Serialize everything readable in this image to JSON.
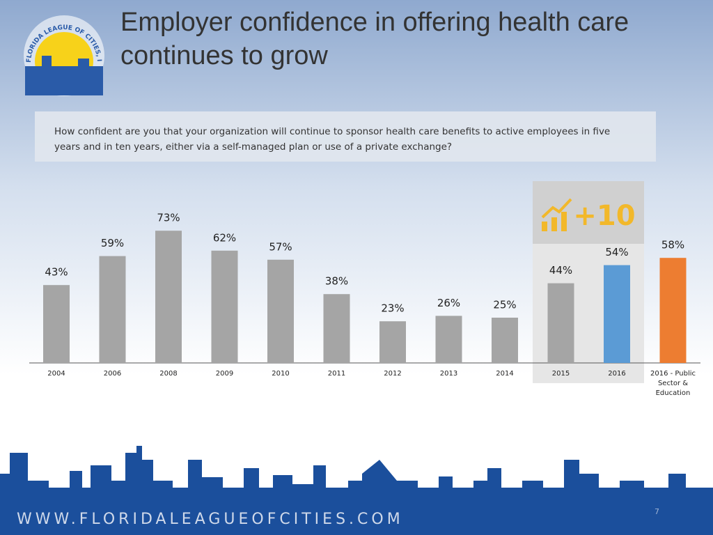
{
  "logo_text": "FLORIDA LEAGUE OF CITIES, INC.",
  "chart_data": {
    "type": "bar",
    "title": "Employer confidence in offering health care continues to grow",
    "subtitle": "How confident are you that your organization will continue to sponsor health care benefits to active employees in five years and in ten years, either via a self-managed plan or use of a private exchange?",
    "annotation": "+10",
    "categories": [
      "2004",
      "2006",
      "2008",
      "2009",
      "2010",
      "2011",
      "2012",
      "2013",
      "2014",
      "2015",
      "2016",
      "2016 - Public Sector & Education"
    ],
    "values": [
      43,
      59,
      73,
      62,
      57,
      38,
      23,
      26,
      25,
      44,
      54,
      58
    ],
    "value_labels": [
      "43%",
      "59%",
      "73%",
      "62%",
      "57%",
      "38%",
      "23%",
      "26%",
      "25%",
      "44%",
      "54%",
      "58%"
    ],
    "colors": [
      "#a5a5a5",
      "#a5a5a5",
      "#a5a5a5",
      "#a5a5a5",
      "#a5a5a5",
      "#a5a5a5",
      "#a5a5a5",
      "#a5a5a5",
      "#a5a5a5",
      "#a5a5a5",
      "#5b9bd5",
      "#ed7d31"
    ]
  },
  "footer": "WWW.FLORIDALEAGUEOFCITIES.COM",
  "page_number": "7"
}
